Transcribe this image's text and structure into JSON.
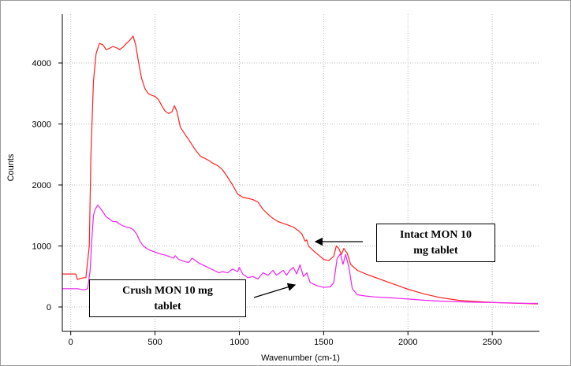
{
  "chart_data": {
    "type": "line",
    "xlabel": "Wavenumber (cm-1)",
    "ylabel": "Counts",
    "xlim": [
      -50,
      2780
    ],
    "ylim": [
      -400,
      4800
    ],
    "x_ticks": [
      "0",
      "500",
      "1000",
      "1500",
      "2000",
      "2500"
    ],
    "x_tick_values": [
      0,
      500,
      1000,
      1500,
      2000,
      2500
    ],
    "y_ticks": [
      "0",
      "1000",
      "2000",
      "3000",
      "4000"
    ],
    "y_tick_values": [
      0,
      1000,
      2000,
      3000,
      4000
    ],
    "grid": true,
    "series": [
      {
        "color": "#ff2020",
        "points": [
          [
            -50,
            540
          ],
          [
            30,
            540
          ],
          [
            40,
            450
          ],
          [
            60,
            470
          ],
          [
            80,
            480
          ],
          [
            90,
            480
          ],
          [
            110,
            1000
          ],
          [
            120,
            2500
          ],
          [
            135,
            3700
          ],
          [
            150,
            4150
          ],
          [
            170,
            4320
          ],
          [
            190,
            4300
          ],
          [
            210,
            4220
          ],
          [
            230,
            4240
          ],
          [
            250,
            4270
          ],
          [
            270,
            4250
          ],
          [
            290,
            4220
          ],
          [
            310,
            4260
          ],
          [
            330,
            4320
          ],
          [
            350,
            4370
          ],
          [
            370,
            4440
          ],
          [
            385,
            4300
          ],
          [
            400,
            4050
          ],
          [
            420,
            3750
          ],
          [
            440,
            3580
          ],
          [
            460,
            3500
          ],
          [
            480,
            3470
          ],
          [
            500,
            3450
          ],
          [
            520,
            3400
          ],
          [
            540,
            3300
          ],
          [
            560,
            3210
          ],
          [
            580,
            3170
          ],
          [
            600,
            3200
          ],
          [
            615,
            3300
          ],
          [
            630,
            3200
          ],
          [
            650,
            2950
          ],
          [
            680,
            2820
          ],
          [
            710,
            2700
          ],
          [
            740,
            2570
          ],
          [
            770,
            2470
          ],
          [
            800,
            2430
          ],
          [
            820,
            2400
          ],
          [
            840,
            2360
          ],
          [
            870,
            2320
          ],
          [
            900,
            2250
          ],
          [
            930,
            2130
          ],
          [
            960,
            2000
          ],
          [
            990,
            1850
          ],
          [
            1020,
            1800
          ],
          [
            1050,
            1780
          ],
          [
            1080,
            1760
          ],
          [
            1110,
            1720
          ],
          [
            1140,
            1600
          ],
          [
            1170,
            1520
          ],
          [
            1200,
            1450
          ],
          [
            1230,
            1400
          ],
          [
            1260,
            1370
          ],
          [
            1290,
            1340
          ],
          [
            1320,
            1310
          ],
          [
            1350,
            1250
          ],
          [
            1370,
            1200
          ],
          [
            1390,
            1080
          ],
          [
            1400,
            1100
          ],
          [
            1410,
            1000
          ],
          [
            1440,
            920
          ],
          [
            1470,
            850
          ],
          [
            1500,
            780
          ],
          [
            1530,
            760
          ],
          [
            1560,
            830
          ],
          [
            1575,
            1000
          ],
          [
            1590,
            960
          ],
          [
            1605,
            860
          ],
          [
            1620,
            960
          ],
          [
            1640,
            880
          ],
          [
            1660,
            700
          ],
          [
            1700,
            600
          ],
          [
            1750,
            540
          ],
          [
            1800,
            490
          ],
          [
            1850,
            440
          ],
          [
            1900,
            390
          ],
          [
            1950,
            340
          ],
          [
            2000,
            290
          ],
          [
            2050,
            250
          ],
          [
            2100,
            210
          ],
          [
            2150,
            180
          ],
          [
            2200,
            150
          ],
          [
            2250,
            130
          ],
          [
            2300,
            110
          ],
          [
            2350,
            100
          ],
          [
            2400,
            90
          ],
          [
            2500,
            75
          ],
          [
            2600,
            65
          ],
          [
            2700,
            55
          ],
          [
            2770,
            50
          ]
        ]
      },
      {
        "color": "#ee22ee",
        "points": [
          [
            -50,
            300
          ],
          [
            40,
            300
          ],
          [
            80,
            280
          ],
          [
            100,
            300
          ],
          [
            115,
            600
          ],
          [
            125,
            1100
          ],
          [
            135,
            1500
          ],
          [
            145,
            1600
          ],
          [
            160,
            1670
          ],
          [
            175,
            1620
          ],
          [
            190,
            1560
          ],
          [
            210,
            1480
          ],
          [
            230,
            1440
          ],
          [
            250,
            1400
          ],
          [
            270,
            1400
          ],
          [
            290,
            1360
          ],
          [
            310,
            1330
          ],
          [
            330,
            1310
          ],
          [
            350,
            1300
          ],
          [
            370,
            1270
          ],
          [
            390,
            1200
          ],
          [
            410,
            1080
          ],
          [
            430,
            1000
          ],
          [
            450,
            960
          ],
          [
            470,
            930
          ],
          [
            500,
            900
          ],
          [
            530,
            870
          ],
          [
            560,
            850
          ],
          [
            590,
            820
          ],
          [
            610,
            800
          ],
          [
            620,
            840
          ],
          [
            640,
            780
          ],
          [
            660,
            760
          ],
          [
            680,
            740
          ],
          [
            700,
            730
          ],
          [
            720,
            800
          ],
          [
            740,
            760
          ],
          [
            760,
            720
          ],
          [
            790,
            680
          ],
          [
            820,
            640
          ],
          [
            850,
            600
          ],
          [
            880,
            560
          ],
          [
            900,
            580
          ],
          [
            930,
            560
          ],
          [
            960,
            620
          ],
          [
            990,
            580
          ],
          [
            1000,
            650
          ],
          [
            1020,
            540
          ],
          [
            1050,
            480
          ],
          [
            1080,
            500
          ],
          [
            1110,
            460
          ],
          [
            1140,
            560
          ],
          [
            1170,
            520
          ],
          [
            1200,
            600
          ],
          [
            1220,
            520
          ],
          [
            1240,
            560
          ],
          [
            1260,
            600
          ],
          [
            1280,
            520
          ],
          [
            1300,
            600
          ],
          [
            1320,
            650
          ],
          [
            1340,
            540
          ],
          [
            1360,
            690
          ],
          [
            1380,
            500
          ],
          [
            1400,
            560
          ],
          [
            1420,
            400
          ],
          [
            1460,
            350
          ],
          [
            1500,
            320
          ],
          [
            1540,
            330
          ],
          [
            1560,
            400
          ],
          [
            1580,
            800
          ],
          [
            1600,
            870
          ],
          [
            1615,
            700
          ],
          [
            1630,
            860
          ],
          [
            1650,
            650
          ],
          [
            1670,
            300
          ],
          [
            1700,
            200
          ],
          [
            1750,
            180
          ],
          [
            1800,
            165
          ],
          [
            1900,
            150
          ],
          [
            2000,
            130
          ],
          [
            2100,
            110
          ],
          [
            2200,
            95
          ],
          [
            2300,
            85
          ],
          [
            2400,
            78
          ],
          [
            2500,
            72
          ],
          [
            2600,
            66
          ],
          [
            2700,
            60
          ],
          [
            2770,
            58
          ]
        ]
      }
    ],
    "annotations": [
      {
        "text": "Intact MON 10 mg tablet",
        "line1": "Intact MON 10",
        "line2": "mg tablet"
      },
      {
        "text": "Crush   MON 10 mg tablet",
        "line1": "Crush   MON 10 mg",
        "line2": "tablet"
      }
    ]
  }
}
